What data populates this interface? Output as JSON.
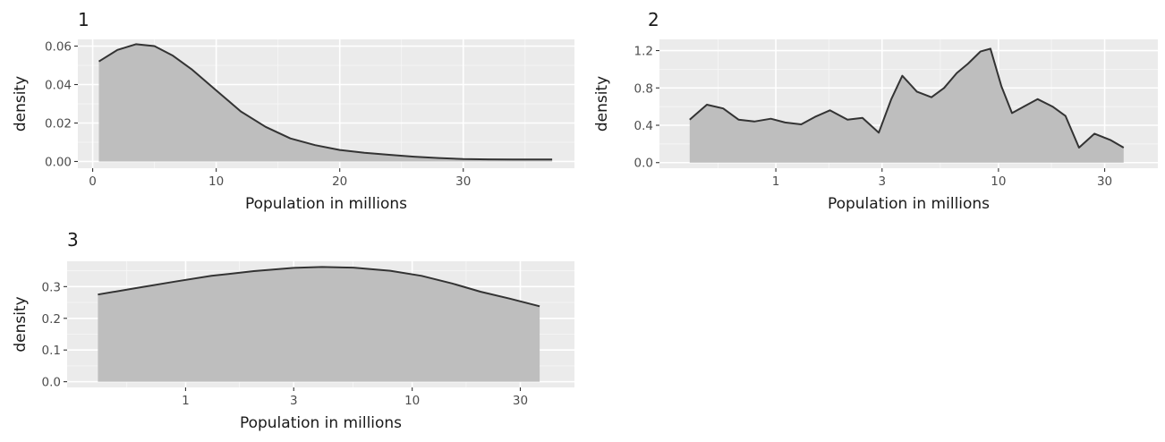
{
  "chart_data": [
    {
      "type": "area",
      "title": "1",
      "xlabel": "Population in millions",
      "ylabel": "density",
      "xscale": "linear",
      "xlim": [
        -1.2,
        39.0
      ],
      "ylim": [
        -0.0035,
        0.0635
      ],
      "xticks": [
        0,
        10,
        20,
        30
      ],
      "xtick_labels": [
        "0",
        "10",
        "20",
        "30"
      ],
      "xminor": [
        5,
        15,
        25,
        35
      ],
      "yticks": [
        0.0,
        0.02,
        0.04,
        0.06
      ],
      "ytick_labels": [
        "0.00",
        "0.02",
        "0.04",
        "0.06"
      ],
      "yminor": [
        0.01,
        0.03,
        0.05
      ],
      "grid": true,
      "x": [
        0.5,
        2,
        3.5,
        5,
        6.5,
        8,
        10,
        12,
        14,
        16,
        18,
        20,
        22,
        24,
        26,
        28,
        30,
        32,
        34,
        36.5,
        37.2
      ],
      "y": [
        0.052,
        0.058,
        0.061,
        0.06,
        0.055,
        0.048,
        0.037,
        0.026,
        0.018,
        0.012,
        0.0085,
        0.006,
        0.0045,
        0.0035,
        0.0025,
        0.0018,
        0.0013,
        0.0011,
        0.001,
        0.001,
        0.001
      ]
    },
    {
      "type": "area",
      "title": "2",
      "xlabel": "Population in millions",
      "ylabel": "density",
      "xscale": "log10",
      "xlim": [
        0.3,
        52
      ],
      "ylim": [
        -0.06,
        1.32
      ],
      "xticks": [
        1,
        3,
        10,
        30
      ],
      "xtick_labels": [
        "1",
        "3",
        "10",
        "30"
      ],
      "xminor": [
        0.55,
        1.73,
        5.48,
        17.3
      ],
      "yticks": [
        0.0,
        0.4,
        0.8,
        1.2
      ],
      "ytick_labels": [
        "0.0",
        "0.4",
        "0.8",
        "1.2"
      ],
      "yminor": [
        0.2,
        0.6,
        1.0
      ],
      "grid": true,
      "x": [
        0.41,
        0.49,
        0.58,
        0.68,
        0.8,
        0.95,
        1.1,
        1.3,
        1.5,
        1.75,
        2.1,
        2.45,
        2.9,
        3.3,
        3.7,
        4.3,
        5.0,
        5.7,
        6.5,
        7.3,
        8.3,
        9.2,
        10.3,
        11.5,
        13,
        15,
        17.5,
        20,
        23,
        27,
        32,
        36.5
      ],
      "y": [
        0.46,
        0.62,
        0.58,
        0.46,
        0.44,
        0.47,
        0.43,
        0.41,
        0.49,
        0.56,
        0.46,
        0.48,
        0.32,
        0.68,
        0.93,
        0.76,
        0.7,
        0.8,
        0.96,
        1.06,
        1.19,
        1.22,
        0.82,
        0.53,
        0.6,
        0.68,
        0.6,
        0.5,
        0.16,
        0.31,
        0.24,
        0.16
      ]
    },
    {
      "type": "area",
      "title": "3",
      "xlabel": "Population in millions",
      "ylabel": "density",
      "xscale": "log10",
      "xlim": [
        0.3,
        52
      ],
      "ylim": [
        -0.018,
        0.38
      ],
      "xticks": [
        1,
        3,
        10,
        30
      ],
      "xtick_labels": [
        "1",
        "3",
        "10",
        "30"
      ],
      "xminor": [
        0.55,
        1.73,
        5.48,
        17.3
      ],
      "yticks": [
        0.0,
        0.1,
        0.2,
        0.3
      ],
      "ytick_labels": [
        "0.0",
        "0.1",
        "0.2",
        "0.3"
      ],
      "yminor": [
        0.05,
        0.15,
        0.25,
        0.35
      ],
      "grid": true,
      "x": [
        0.41,
        0.6,
        0.9,
        1.3,
        2.0,
        3.0,
        4.0,
        5.5,
        8,
        11,
        15,
        20,
        27,
        36.5
      ],
      "y": [
        0.275,
        0.295,
        0.316,
        0.334,
        0.349,
        0.359,
        0.362,
        0.36,
        0.35,
        0.334,
        0.31,
        0.284,
        0.262,
        0.238
      ]
    }
  ]
}
